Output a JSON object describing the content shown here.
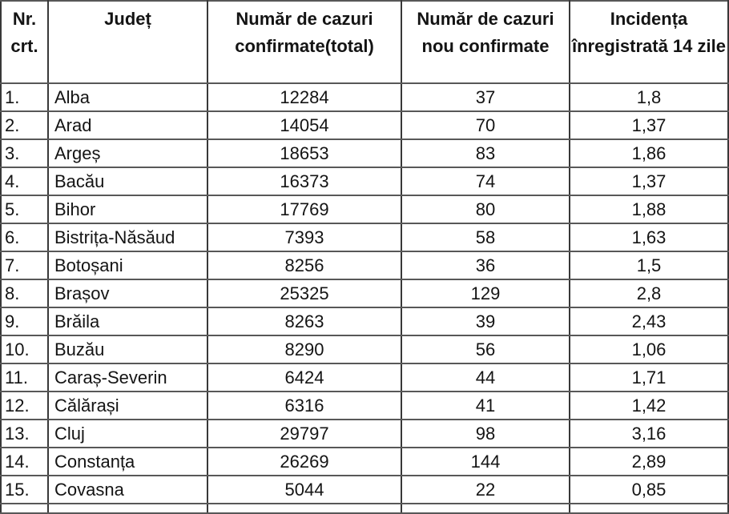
{
  "table": {
    "columns": [
      {
        "id": "nr",
        "label": "Nr.\ncrt."
      },
      {
        "id": "judet",
        "label": "Județ"
      },
      {
        "id": "total",
        "label": "Număr de cazuri confirmate(total)"
      },
      {
        "id": "nou",
        "label": "Număr de cazuri nou confirmate"
      },
      {
        "id": "incidenta",
        "label": "Incidența înregistrată 14 zile"
      }
    ],
    "rows": [
      {
        "nr": "1.",
        "judet": "Alba",
        "total": "12284",
        "nou": "37",
        "incidenta": "1,8"
      },
      {
        "nr": "2.",
        "judet": "Arad",
        "total": "14054",
        "nou": "70",
        "incidenta": "1,37"
      },
      {
        "nr": "3.",
        "judet": "Argeș",
        "total": "18653",
        "nou": "83",
        "incidenta": "1,86"
      },
      {
        "nr": "4.",
        "judet": "Bacău",
        "total": "16373",
        "nou": "74",
        "incidenta": "1,37"
      },
      {
        "nr": "5.",
        "judet": "Bihor",
        "total": "17769",
        "nou": "80",
        "incidenta": "1,88"
      },
      {
        "nr": "6.",
        "judet": "Bistrița-Năsăud",
        "total": "7393",
        "nou": "58",
        "incidenta": "1,63"
      },
      {
        "nr": "7.",
        "judet": "Botoșani",
        "total": "8256",
        "nou": "36",
        "incidenta": "1,5"
      },
      {
        "nr": "8.",
        "judet": "Brașov",
        "total": "25325",
        "nou": "129",
        "incidenta": "2,8"
      },
      {
        "nr": "9.",
        "judet": "Brăila",
        "total": "8263",
        "nou": "39",
        "incidenta": "2,43"
      },
      {
        "nr": "10.",
        "judet": "Buzău",
        "total": "8290",
        "nou": "56",
        "incidenta": "1,06"
      },
      {
        "nr": "11.",
        "judet": "Caraș-Severin",
        "total": "6424",
        "nou": "44",
        "incidenta": "1,71"
      },
      {
        "nr": "12.",
        "judet": "Călărași",
        "total": "6316",
        "nou": "41",
        "incidenta": "1,42"
      },
      {
        "nr": "13.",
        "judet": "Cluj",
        "total": "29797",
        "nou": "98",
        "incidenta": "3,16"
      },
      {
        "nr": "14.",
        "judet": "Constanța",
        "total": "26269",
        "nou": "144",
        "incidenta": "2,89"
      },
      {
        "nr": "15.",
        "judet": "Covasna",
        "total": "5044",
        "nou": "22",
        "incidenta": "0,85"
      }
    ]
  },
  "colors": {
    "background": "#ffffff",
    "text": "#141414",
    "border_outer": "#222222",
    "border_horizontal": "#585858",
    "border_vertical": "#383838"
  }
}
